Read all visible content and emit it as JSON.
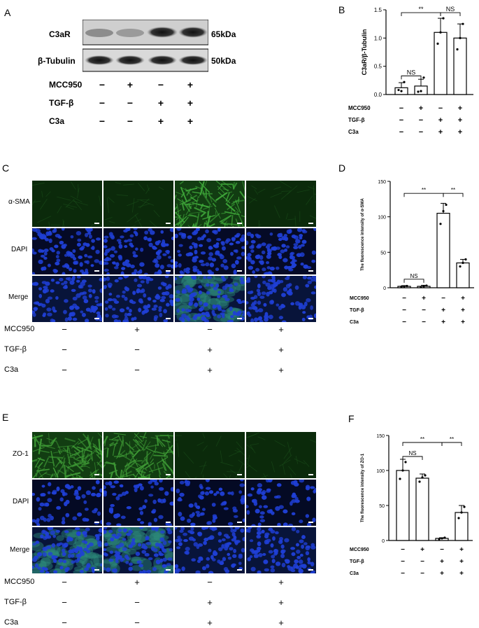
{
  "panels": {
    "A": {
      "letter": "A",
      "bands": [
        {
          "label": "C3aR",
          "kda": "65kDa"
        },
        {
          "label": "β-Tubulin",
          "kda": "50kDa"
        }
      ],
      "rows": [
        {
          "label": "MCC950",
          "signs": [
            "−",
            "+",
            "−",
            "+"
          ]
        },
        {
          "label": "TGF-β",
          "signs": [
            "−",
            "−",
            "+",
            "+"
          ]
        },
        {
          "label": "C3a",
          "signs": [
            "−",
            "−",
            "+",
            "+"
          ]
        }
      ]
    },
    "B": {
      "letter": "B"
    },
    "C": {
      "letter": "C",
      "channels": [
        "α-SMA",
        "DAPI",
        "Merge"
      ],
      "rows": [
        {
          "label": "MCC950",
          "signs": [
            "−",
            "+",
            "−",
            "+"
          ]
        },
        {
          "label": "TGF-β",
          "signs": [
            "−",
            "−",
            "+",
            "+"
          ]
        },
        {
          "label": "C3a",
          "signs": [
            "−",
            "−",
            "+",
            "+"
          ]
        }
      ]
    },
    "D": {
      "letter": "D"
    },
    "E": {
      "letter": "E",
      "channels": [
        "ZO-1",
        "DAPI",
        "Merge"
      ],
      "rows": [
        {
          "label": "MCC950",
          "signs": [
            "−",
            "+",
            "−",
            "+"
          ]
        },
        {
          "label": "TGF-β",
          "signs": [
            "−",
            "−",
            "+",
            "+"
          ]
        },
        {
          "label": "C3a",
          "signs": [
            "−",
            "−",
            "+",
            "+"
          ]
        }
      ]
    },
    "F": {
      "letter": "F"
    }
  },
  "chart_data": [
    {
      "id": "B",
      "type": "bar",
      "ylabel": "C3aR/β-Tubulin",
      "ylim": [
        0,
        1.5
      ],
      "yticks": [
        "0.0",
        "0.5",
        "1.0",
        "1.5"
      ],
      "values": [
        0.12,
        0.15,
        1.1,
        1.0
      ],
      "errors": [
        0.09,
        0.12,
        0.25,
        0.25
      ],
      "points": [
        [
          0.08,
          0.06,
          0.22
        ],
        [
          0.05,
          0.06,
          0.3
        ],
        [
          0.9,
          1.1,
          1.35
        ],
        [
          0.8,
          1.0,
          1.25
        ]
      ],
      "sig": [
        {
          "from": 0,
          "to": 1,
          "label": "NS",
          "y": 0.33
        },
        {
          "from": 0,
          "to": 2,
          "label": "**",
          "y": 1.45
        },
        {
          "from": 2,
          "to": 3,
          "label": "NS",
          "y": 1.45
        }
      ],
      "rows": [
        {
          "label": "MCC950",
          "signs": [
            "−",
            "+",
            "−",
            "+"
          ]
        },
        {
          "label": "TGF-β",
          "signs": [
            "−",
            "−",
            "+",
            "+"
          ]
        },
        {
          "label": "C3a",
          "signs": [
            "−",
            "−",
            "+",
            "+"
          ]
        }
      ]
    },
    {
      "id": "D",
      "type": "bar",
      "ylabel": "The fluorescence intensity of α-SMA",
      "ylim": [
        0,
        150
      ],
      "yticks": [
        "0",
        "50",
        "100",
        "150"
      ],
      "values": [
        2,
        2,
        105,
        35
      ],
      "errors": [
        1,
        1.5,
        14,
        5
      ],
      "points": [
        [
          1.5,
          2,
          2.5
        ],
        [
          1,
          2,
          3
        ],
        [
          90,
          108,
          117
        ],
        [
          30,
          35,
          40
        ]
      ],
      "sig": [
        {
          "from": 0,
          "to": 1,
          "label": "NS",
          "y": 12
        },
        {
          "from": 0,
          "to": 2,
          "label": "**",
          "y": 133
        },
        {
          "from": 2,
          "to": 3,
          "label": "**",
          "y": 133
        }
      ],
      "rows": [
        {
          "label": "MCC950",
          "signs": [
            "−",
            "+",
            "−",
            "+"
          ]
        },
        {
          "label": "TGF-β",
          "signs": [
            "−",
            "−",
            "+",
            "+"
          ]
        },
        {
          "label": "C3a",
          "signs": [
            "−",
            "−",
            "+",
            "+"
          ]
        }
      ]
    },
    {
      "id": "F",
      "type": "bar",
      "ylabel": "The fluorescence intensity of ZO-1",
      "ylim": [
        0,
        150
      ],
      "yticks": [
        "0",
        "50",
        "100",
        "150"
      ],
      "values": [
        100,
        89,
        3,
        40
      ],
      "errors": [
        16,
        6,
        1,
        10
      ],
      "points": [
        [
          88,
          100,
          112
        ],
        [
          84,
          90,
          93
        ],
        [
          2,
          3,
          4
        ],
        [
          32,
          40,
          48
        ]
      ],
      "sig": [
        {
          "from": 0,
          "to": 1,
          "label": "NS",
          "y": 120
        },
        {
          "from": 0,
          "to": 2,
          "label": "**",
          "y": 140
        },
        {
          "from": 2,
          "to": 3,
          "label": "**",
          "y": 140
        }
      ],
      "rows": [
        {
          "label": "MCC950",
          "signs": [
            "−",
            "+",
            "−",
            "+"
          ]
        },
        {
          "label": "TGF-β",
          "signs": [
            "−",
            "−",
            "+",
            "+"
          ]
        },
        {
          "label": "C3a",
          "signs": [
            "−",
            "−",
            "+",
            "+"
          ]
        }
      ]
    }
  ],
  "colors": {
    "alpha_sma_green": "#3fa83a",
    "dapi_blue": "#1f3fd6",
    "zo1_green": "#3e9a35"
  }
}
